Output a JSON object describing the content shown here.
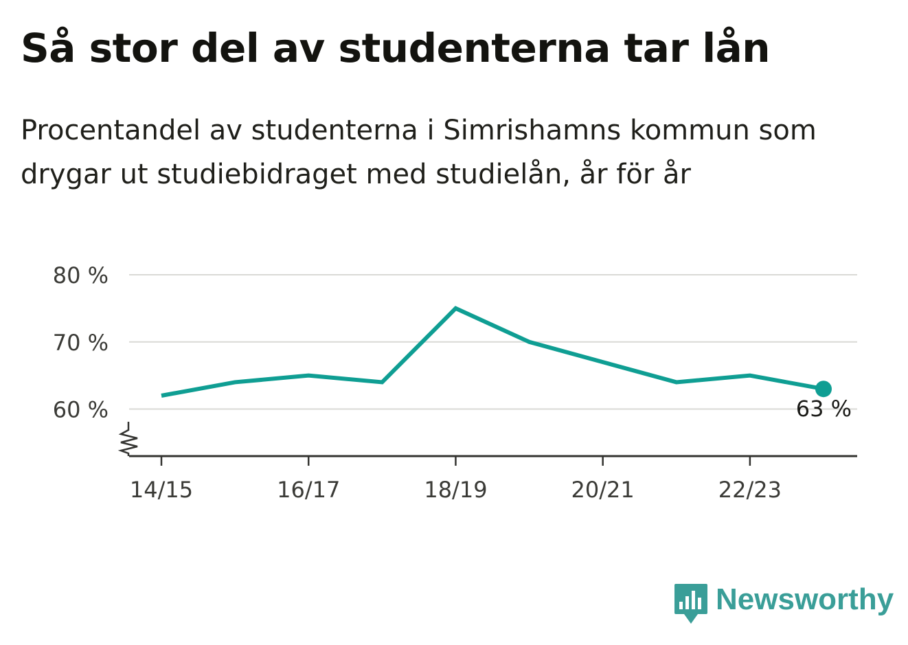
{
  "title": "Så stor del av studenterna tar lån",
  "subtitle": "Procentandel av studenterna i Simrishamns kommun som drygar ut studiebidraget med studielån, år för år",
  "brand": {
    "name": "Newsworthy",
    "color": "#3a9e98"
  },
  "chart_data": {
    "type": "line",
    "title": "Så stor del av studenterna tar lån",
    "subtitle": "Procentandel av studenterna i Simrishamns kommun som drygar ut studiebidraget med studielån, år för år",
    "x": [
      "14/15",
      "15/16",
      "16/17",
      "17/18",
      "18/19",
      "19/20",
      "20/21",
      "21/22",
      "22/23",
      "23/24"
    ],
    "x_tick_labels": [
      "14/15",
      "16/17",
      "18/19",
      "20/21",
      "22/23"
    ],
    "series": [
      {
        "values": [
          62,
          64,
          65,
          64,
          75,
          70,
          67,
          64,
          65,
          63
        ],
        "color": "#0f9e93"
      }
    ],
    "y_ticks": [
      60,
      70,
      80
    ],
    "y_tick_labels": [
      "60 %",
      "70 %",
      "80 %"
    ],
    "ylim": [
      53,
      80
    ],
    "y_axis_break": true,
    "grid": true,
    "end_label": "63 %",
    "xlabel": "",
    "ylabel": ""
  }
}
